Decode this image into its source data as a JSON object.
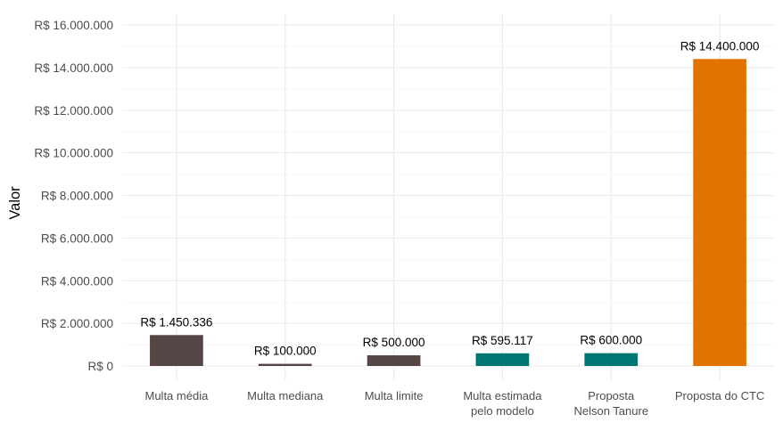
{
  "chart_data": {
    "type": "bar",
    "title": "",
    "xlabel": "",
    "ylabel": "Valor",
    "ylim": [
      0,
      16500000
    ],
    "y_ticks": [
      0,
      2000000,
      4000000,
      6000000,
      8000000,
      10000000,
      12000000,
      14000000,
      16000000
    ],
    "y_tick_labels": [
      "R$ 0",
      "R$ 2.000.000",
      "R$ 4.000.000",
      "R$ 6.000.000",
      "R$ 8.000.000",
      "R$ 10.000.000",
      "R$ 12.000.000",
      "R$ 14.000.000",
      "R$ 16.000.000"
    ],
    "categories": [
      [
        "Multa média"
      ],
      [
        "Multa mediana"
      ],
      [
        "Multa limite"
      ],
      [
        "Multa estimada",
        "pelo modelo"
      ],
      [
        "Proposta",
        "Nelson Tanure"
      ],
      [
        "Proposta do CTC"
      ]
    ],
    "values": [
      1450336,
      100000,
      500000,
      595117,
      600000,
      14400000
    ],
    "data_labels": [
      "R$ 1.450.336",
      "R$ 100.000",
      "R$ 500.000",
      "R$ 595.117",
      "R$ 600.000",
      "R$ 14.400.000"
    ],
    "colors": [
      "#554545",
      "#554545",
      "#554545",
      "#007672",
      "#007672",
      "#E27300"
    ],
    "grid": true,
    "legend": "none"
  }
}
